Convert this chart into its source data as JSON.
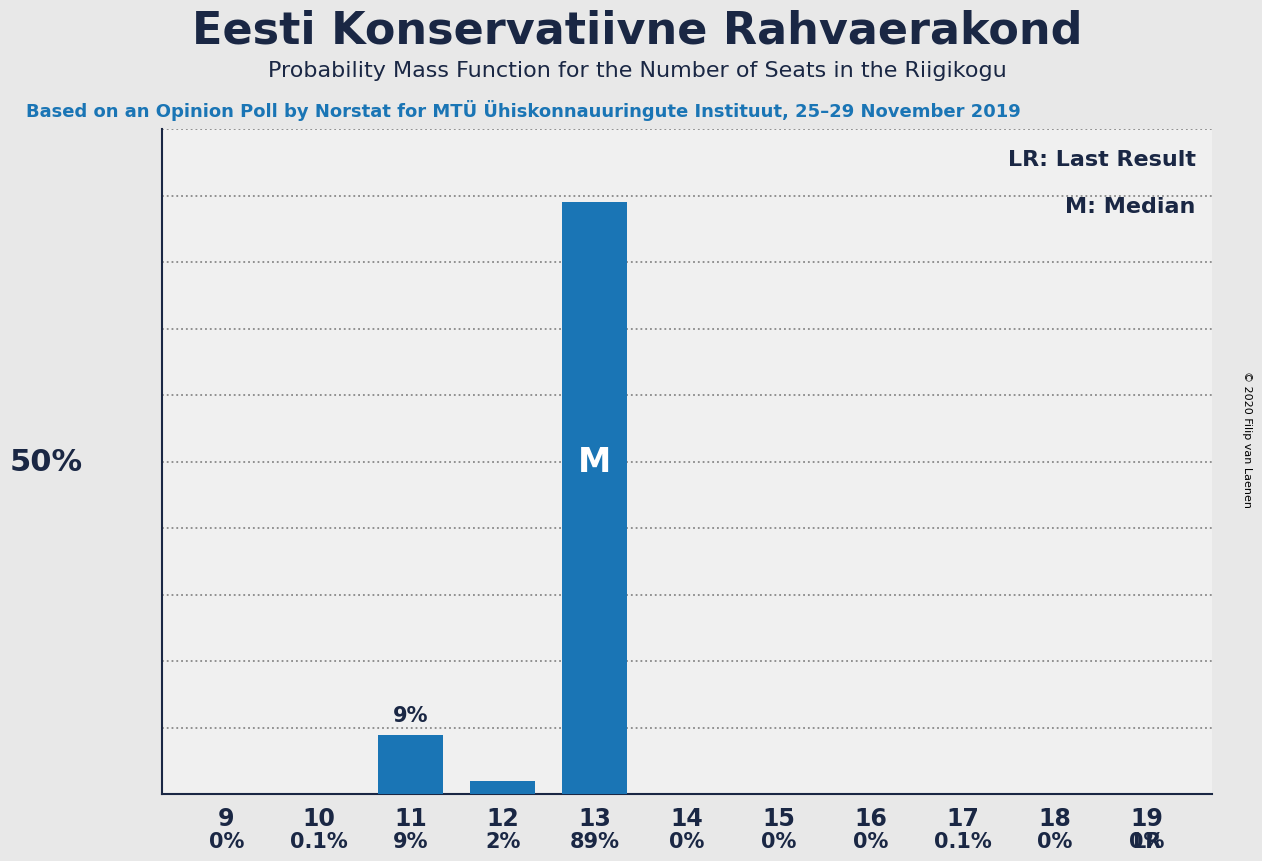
{
  "title": "Eesti Konservatiivne Rahvaerakond",
  "subtitle": "Probability Mass Function for the Number of Seats in the Riigikogu",
  "source_line": "Based on an Opinion Poll by Norstat for MTÜ Ühiskonnauuringute Instituut, 25–29 November 2019",
  "copyright": "© 2020 Filip van Laenen",
  "seats": [
    9,
    10,
    11,
    12,
    13,
    14,
    15,
    16,
    17,
    18,
    19
  ],
  "probabilities": [
    0.0,
    0.1,
    9.0,
    2.0,
    89.0,
    0.0,
    0.0,
    0.0,
    0.1,
    0.0,
    0.0
  ],
  "bar_labels": [
    "0%",
    "0.1%",
    "9%",
    "2%",
    "89%",
    "0%",
    "0%",
    "0%",
    "0.1%",
    "0%",
    "0%"
  ],
  "bar_color": "#1a75b5",
  "median_seat": 13,
  "lr_seat": 19,
  "lr_label": "LR",
  "median_label": "M",
  "legend_lr": "LR: Last Result",
  "legend_m": "M: Median",
  "ylabel_50": "50%",
  "outer_background": "#e8e8e8",
  "plot_background": "#f0f0f0",
  "text_color": "#1a2744",
  "source_color": "#1a75b5",
  "grid_color": "#888888",
  "ylim": [
    0,
    100
  ],
  "ytick_vals": [
    0,
    10,
    20,
    30,
    40,
    50,
    60,
    70,
    80,
    90,
    100
  ],
  "title_fontsize": 32,
  "subtitle_fontsize": 16,
  "source_fontsize": 13,
  "bar_label_fontsize": 15,
  "median_label_fontsize": 24,
  "axis_tick_fontsize": 17,
  "legend_fontsize": 16,
  "ylabel_fontsize": 22,
  "lr_fontsize": 15
}
